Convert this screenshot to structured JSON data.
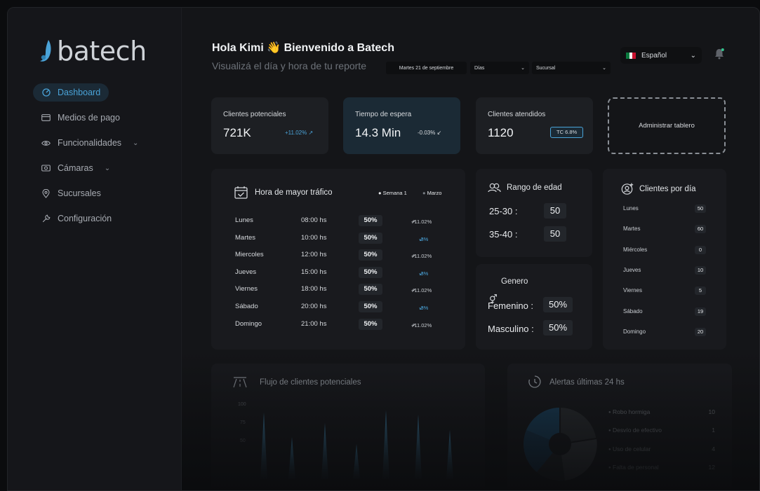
{
  "brand": {
    "name": "batech"
  },
  "sidebar": {
    "items": [
      {
        "label": "Dashboard",
        "icon": "dashboard-icon",
        "active": true
      },
      {
        "label": "Medios de pago",
        "icon": "card-icon"
      },
      {
        "label": "Funcionalidades",
        "icon": "eye-icon",
        "expandable": true
      },
      {
        "label": "Cámaras",
        "icon": "camera-icon",
        "expandable": true
      },
      {
        "label": "Sucursales",
        "icon": "location-icon"
      },
      {
        "label": "Configuración",
        "icon": "wrench-icon"
      }
    ]
  },
  "header": {
    "greeting": "Hola Kimi 👋 Bienvenido a Batech",
    "subtitle": "Visualizá el día y hora de tu reporte",
    "date_filter": "Martes 21 de septiembre",
    "period_filter": "Días",
    "branch_filter": "Sucursal",
    "language": "Español"
  },
  "kpis": [
    {
      "label": "Clientes potenciales",
      "value": "721K",
      "delta": "+11.02%"
    },
    {
      "label": "Tiempo de espera",
      "value": "14.3 Min",
      "delta": "-0.03%"
    },
    {
      "label": "Clientes atendidos",
      "value": "1120",
      "badge": "TC 6.8%"
    }
  ],
  "manage_board": "Administrar tablero",
  "traffic": {
    "title": "Hora de mayor tráfico",
    "legend": [
      "Semana 1",
      "Marzo"
    ],
    "rows": [
      {
        "day": "Lunes",
        "time": "08:00 hs",
        "pct": "50%",
        "delta": "+11.02%",
        "up": true
      },
      {
        "day": "Martes",
        "time": "10:00 hs",
        "pct": "50%",
        "delta": "-3%",
        "up": false
      },
      {
        "day": "Miercoles",
        "time": "12:00 hs",
        "pct": "50%",
        "delta": "+11.02%",
        "up": true
      },
      {
        "day": "Jueves",
        "time": "15:00 hs",
        "pct": "50%",
        "delta": "-3%",
        "up": false
      },
      {
        "day": "Viernes",
        "time": "18:00 hs",
        "pct": "50%",
        "delta": "+11.02%",
        "up": true
      },
      {
        "day": "Sábado",
        "time": "20:00 hs",
        "pct": "50%",
        "delta": "-3%",
        "up": false
      },
      {
        "day": "Domingo",
        "time": "21:00 hs",
        "pct": "50%",
        "delta": "+11.02%",
        "up": true
      }
    ]
  },
  "age": {
    "title": "Rango de edad",
    "rows": [
      {
        "range": "25-30 :",
        "value": "50"
      },
      {
        "range": "35-40 :",
        "value": "50"
      }
    ]
  },
  "gender": {
    "title": "Genero",
    "rows": [
      {
        "label": "Femenino :",
        "value": "50%"
      },
      {
        "label": "Masculino :",
        "value": "50%"
      }
    ]
  },
  "per_day": {
    "title": "Clientes por día",
    "rows": [
      {
        "day": "Lunes",
        "value": "50"
      },
      {
        "day": "Martes",
        "value": "60"
      },
      {
        "day": "Miércoles",
        "value": "0"
      },
      {
        "day": "Jueves",
        "value": "10"
      },
      {
        "day": "Viernes",
        "value": "5"
      },
      {
        "day": "Sábado",
        "value": "19"
      },
      {
        "day": "Domingo",
        "value": "20"
      }
    ]
  },
  "flow": {
    "title": "Flujo de clientes potenciales",
    "y_ticks": [
      "100",
      "75",
      "50"
    ]
  },
  "alerts": {
    "title": "Alertas últimas 24 hs",
    "items": [
      {
        "label": "Robo hormiga",
        "value": "10"
      },
      {
        "label": "Desvío de efectivo",
        "value": "1"
      },
      {
        "label": "Uso de celular",
        "value": "4"
      },
      {
        "label": "Falta de personal",
        "value": "12"
      }
    ]
  },
  "colors": {
    "accent": "#4aa3d8",
    "up": "#4aa3d8",
    "down": "#4aa3d8"
  }
}
